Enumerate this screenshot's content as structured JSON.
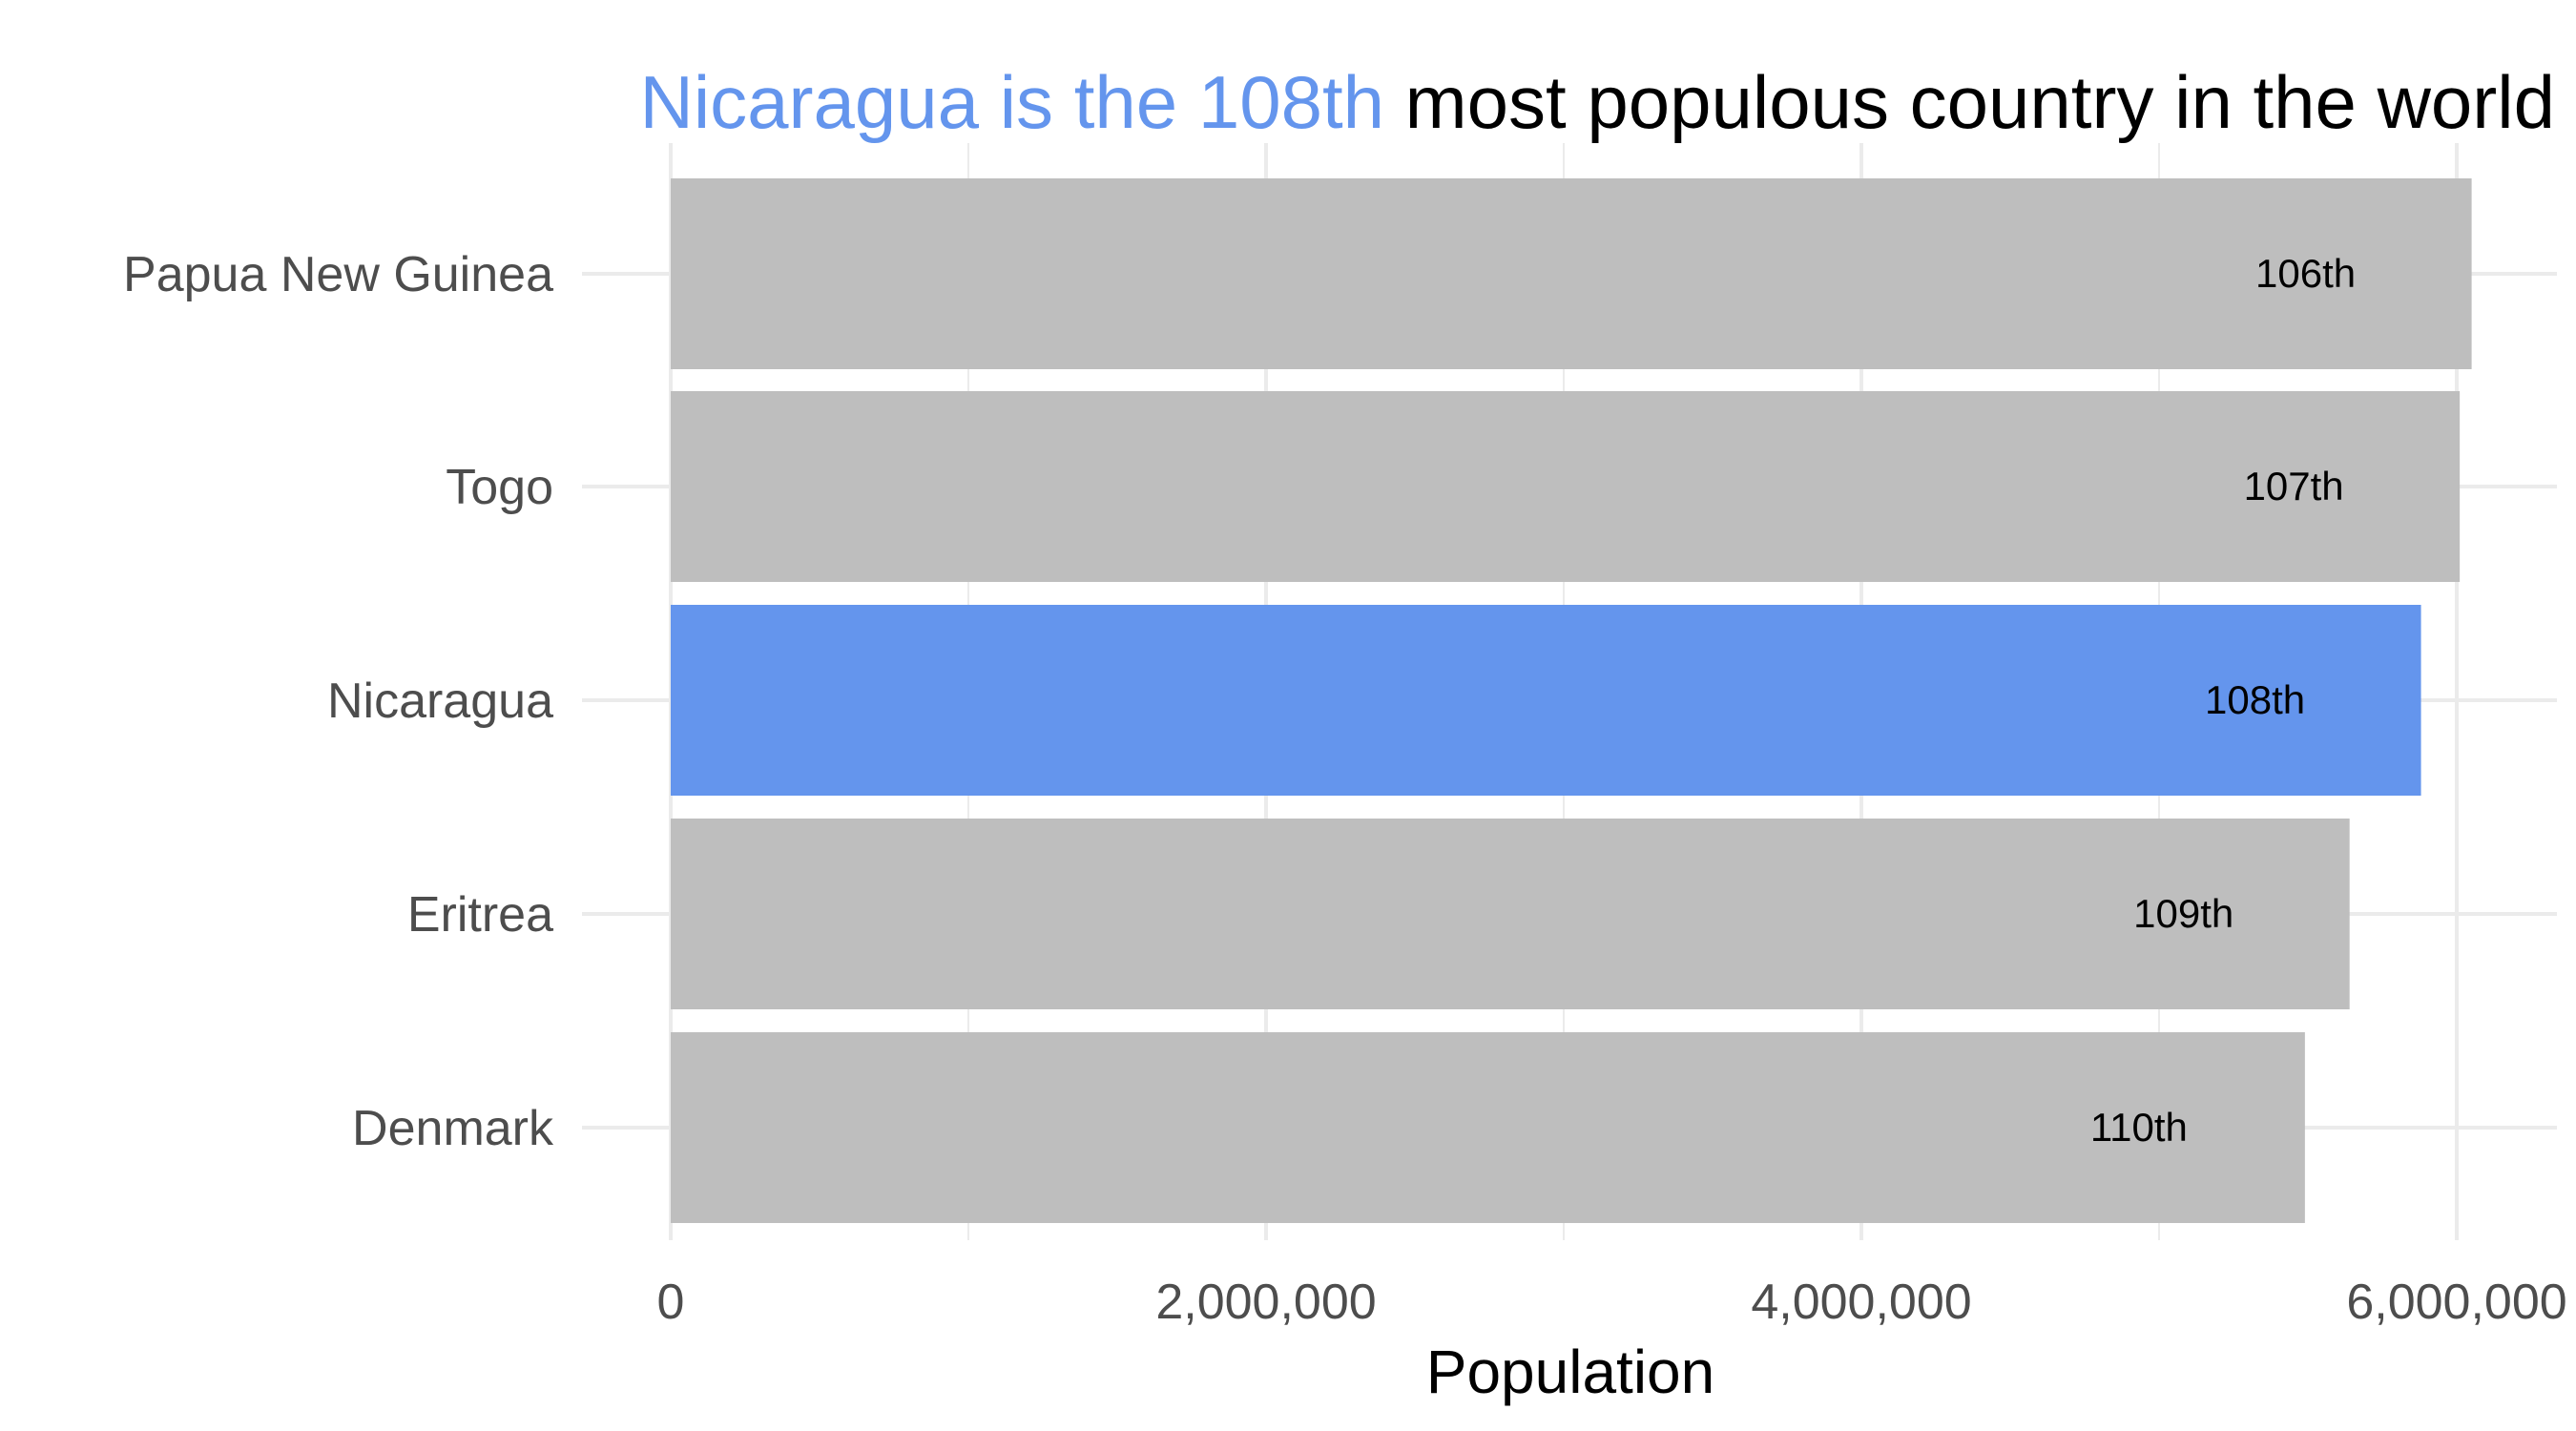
{
  "chart_data": {
    "type": "bar",
    "orientation": "horizontal",
    "title": {
      "highlight": "Nicaragua is the 108th",
      "rest": " most populous country in the world"
    },
    "xlabel": "Population",
    "ylabel": "",
    "xlim": [
      0,
      6300000
    ],
    "xticks": [
      0,
      2000000,
      4000000,
      6000000
    ],
    "xtick_labels": [
      "0",
      "2,000,000",
      "4,000,000",
      "6,000,000"
    ],
    "grid": true,
    "legend": "none",
    "categories": [
      "Papua New Guinea",
      "Togo",
      "Nicaragua",
      "Eritrea",
      "Denmark"
    ],
    "values": [
      6050000,
      6010000,
      5880000,
      5640000,
      5490000
    ],
    "rank_labels": [
      "106th",
      "107th",
      "108th",
      "109th",
      "110th"
    ],
    "highlight_category": "Nicaragua",
    "colors": {
      "highlight": "#6495ED",
      "default": "#BEBEBE",
      "grid": "#EBEBEB",
      "title_rest": "#000000"
    }
  }
}
